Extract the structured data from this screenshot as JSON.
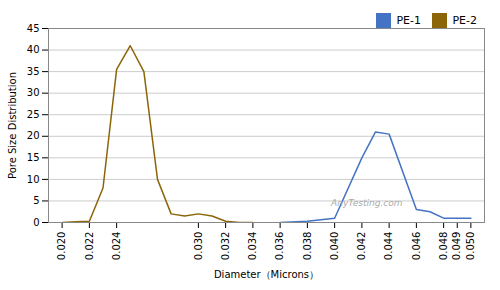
{
  "chart_data": {
    "type": "line",
    "xlabel": "Diameter（Microns）",
    "ylabel": "Pore Size Distribution",
    "annotation": "AnyTesting.com",
    "series": [
      {
        "name": "PE-1",
        "color": "#4472C4",
        "x": [
          0.036,
          0.038,
          0.04,
          0.042,
          0.043,
          0.044,
          0.046,
          0.047,
          0.048,
          0.049,
          0.05
        ],
        "values": [
          0.0,
          0.3,
          1.0,
          15.0,
          21.0,
          20.5,
          3.0,
          2.5,
          1.0,
          1.0,
          1.0
        ]
      },
      {
        "name": "PE-2",
        "color": "#8B6508",
        "x": [
          0.02,
          0.021,
          0.022,
          0.023,
          0.024,
          0.025,
          0.026,
          0.027,
          0.028,
          0.029,
          0.03,
          0.031,
          0.032,
          0.033,
          0.034
        ],
        "values": [
          0.0,
          0.2,
          0.3,
          8.0,
          35.5,
          41.0,
          35.0,
          10.0,
          2.0,
          1.5,
          2.0,
          1.5,
          0.3,
          0.0,
          0.0
        ]
      }
    ],
    "xlim": [
      0.019,
      0.051
    ],
    "xticks": [
      {
        "value": 0.02,
        "label": "0.020"
      },
      0.022,
      0.024,
      {
        "value": 0.03,
        "label": "0.030"
      },
      0.032,
      0.034,
      0.036,
      0.038,
      {
        "value": 0.04,
        "label": "0.040"
      },
      0.042,
      0.044,
      0.046,
      0.048,
      0.049,
      {
        "value": 0.05,
        "label": "0.050"
      }
    ],
    "ylim": [
      0,
      45
    ],
    "yticks": [
      0,
      5,
      10,
      15,
      20,
      25,
      30,
      35,
      40,
      45
    ],
    "grid": true,
    "legend": "upper right"
  }
}
